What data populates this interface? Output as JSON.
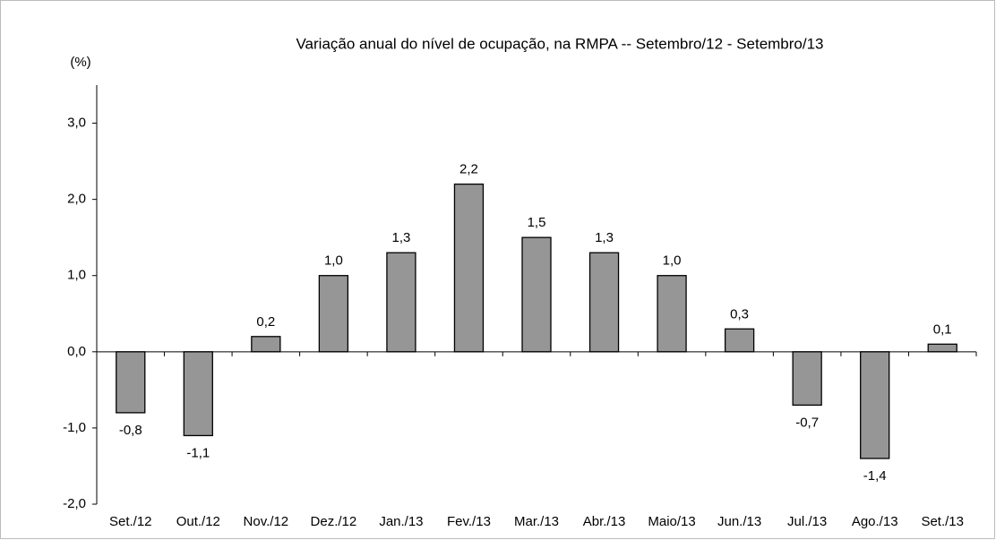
{
  "chart_data": {
    "type": "bar",
    "title": "Variação anual do nível de ocupação, na RMPA -- Setembro/12 - Setembro/13",
    "y_label": "(%)",
    "categories": [
      "Set./12",
      "Out./12",
      "Nov./12",
      "Dez./12",
      "Jan./13",
      "Fev./13",
      "Mar./13",
      "Abr./13",
      "Maio/13",
      "Jun./13",
      "Jul./13",
      "Ago./13",
      "Set./13"
    ],
    "values": [
      -0.8,
      -1.1,
      0.2,
      1.0,
      1.3,
      2.2,
      1.5,
      1.3,
      1.0,
      0.3,
      -0.7,
      -1.4,
      0.1
    ],
    "value_labels": [
      "-0,8",
      "-1,1",
      "0,2",
      "1,0",
      "1,3",
      "2,2",
      "1,5",
      "1,3",
      "1,0",
      "0,3",
      "-0,7",
      "-1,4",
      "0,1"
    ],
    "color": "#969696",
    "ylim": [
      -2,
      3.5
    ],
    "yticks": [
      {
        "value": -2,
        "label": "-2,0"
      },
      {
        "value": -1,
        "label": "-1,0"
      },
      {
        "value": 0,
        "label": "0,0"
      },
      {
        "value": 1,
        "label": "1,0"
      },
      {
        "value": 2,
        "label": "2,0"
      },
      {
        "value": 3,
        "label": "3,0"
      }
    ],
    "grid": false
  }
}
